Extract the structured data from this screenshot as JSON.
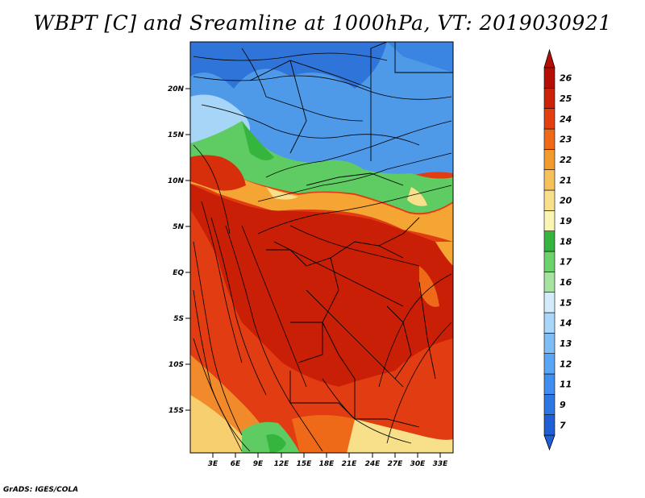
{
  "title": "WBPT [C] and Sreamline at 1000hPa, VT: 2019030921",
  "credit": "GrADS: IGES/COLA",
  "map": {
    "lat_ticks": [
      "20N",
      "15N",
      "10N",
      "5N",
      "EQ",
      "5S",
      "10S",
      "15S"
    ],
    "lon_ticks": [
      "3E",
      "6E",
      "9E",
      "12E",
      "15E",
      "18E",
      "21E",
      "24E",
      "27E",
      "30E",
      "33E"
    ]
  },
  "colorbar": {
    "labels": [
      "7",
      "9",
      "11",
      "12",
      "13",
      "14",
      "15",
      "16",
      "17",
      "18",
      "19",
      "20",
      "21",
      "22",
      "23",
      "24",
      "25",
      "26"
    ],
    "colors": [
      "#1e5fd6",
      "#2b78e4",
      "#3f8ef0",
      "#58a6f5",
      "#7fbdf7",
      "#a9d6fa",
      "#d2ecfb",
      "#a7e3a0",
      "#6cd36b",
      "#36b53e",
      "#fbf5b3",
      "#f8e08a",
      "#f5c15a",
      "#f29a2e",
      "#ee6a18",
      "#e43f10",
      "#cc2208",
      "#b50f04"
    ]
  }
}
